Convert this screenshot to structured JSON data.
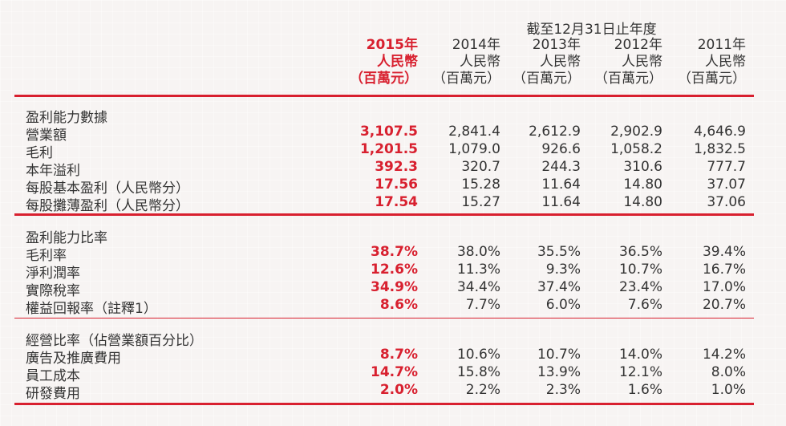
{
  "header": {
    "period": "截至12月31日止年度",
    "columns": [
      {
        "year": "2015年",
        "currency": "人民幣",
        "unit": "（百萬元）"
      },
      {
        "year": "2014年",
        "currency": "人民幣",
        "unit": "（百萬元）"
      },
      {
        "year": "2013年",
        "currency": "人民幣",
        "unit": "（百萬元）"
      },
      {
        "year": "2012年",
        "currency": "人民幣",
        "unit": "（百萬元）"
      },
      {
        "year": "2011年",
        "currency": "人民幣",
        "unit": "（百萬元）"
      }
    ]
  },
  "sections": [
    {
      "title": "盈利能力數據",
      "rows": [
        {
          "label": "營業額",
          "values": [
            "3,107.5",
            "2,841.4",
            "2,612.9",
            "2,902.9",
            "4,646.9"
          ]
        },
        {
          "label": "毛利",
          "values": [
            "1,201.5",
            "1,079.0",
            "926.6",
            "1,058.2",
            "1,832.5"
          ]
        },
        {
          "label": "本年溢利",
          "values": [
            "392.3",
            "320.7",
            "244.3",
            "310.6",
            "777.7"
          ]
        },
        {
          "label": "每股基本盈利（人民幣分）",
          "values": [
            "17.56",
            "15.28",
            "11.64",
            "14.80",
            "37.07"
          ]
        },
        {
          "label": "每股攤薄盈利（人民幣分）",
          "values": [
            "17.54",
            "15.27",
            "11.64",
            "14.80",
            "37.06"
          ]
        }
      ]
    },
    {
      "title": "盈利能力比率",
      "rows": [
        {
          "label": "毛利率",
          "values": [
            "38.7%",
            "38.0%",
            "35.5%",
            "36.5%",
            "39.4%"
          ]
        },
        {
          "label": "淨利潤率",
          "values": [
            "12.6%",
            "11.3%",
            "9.3%",
            "10.7%",
            "16.7%"
          ]
        },
        {
          "label": "實際稅率",
          "values": [
            "34.9%",
            "34.4%",
            "37.4%",
            "23.4%",
            "17.0%"
          ]
        },
        {
          "label": "權益回報率（註釋1）",
          "values": [
            "8.6%",
            "7.7%",
            "6.0%",
            "7.6%",
            "20.7%"
          ]
        }
      ]
    },
    {
      "title": "經營比率（佔營業額百分比）",
      "rows": [
        {
          "label": "廣告及推廣費用",
          "values": [
            "8.7%",
            "10.6%",
            "10.7%",
            "14.0%",
            "14.2%"
          ]
        },
        {
          "label": "員工成本",
          "values": [
            "14.7%",
            "15.8%",
            "13.9%",
            "12.1%",
            "8.0%"
          ]
        },
        {
          "label": "研發費用",
          "values": [
            "2.0%",
            "2.2%",
            "2.3%",
            "1.6%",
            "1.0%"
          ]
        }
      ]
    }
  ],
  "colors": {
    "accent": "#d8202f",
    "text": "#333333",
    "background": "#f7f4f3"
  }
}
